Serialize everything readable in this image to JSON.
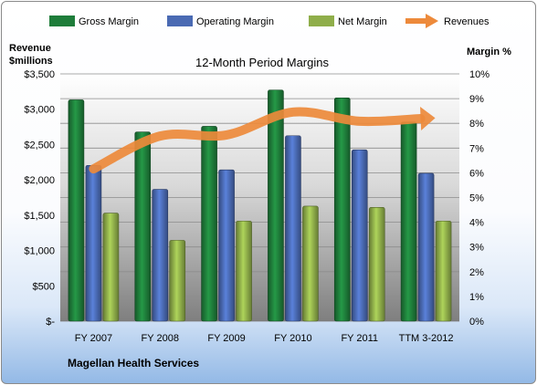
{
  "chart_data": {
    "type": "bar",
    "title": "12-Month Period Margins",
    "footer": "Magellan Health Services",
    "ylabel_left": [
      "Revenue",
      "$millions"
    ],
    "ylabel_right": "Margin %",
    "categories": [
      "FY 2007",
      "FY 2008",
      "FY 2009",
      "FY 2010",
      "FY 2011",
      "TTM 3-2012"
    ],
    "y_left": {
      "range": [
        0,
        3500
      ],
      "ticks": [
        "$-",
        "$500",
        "$1,000",
        "$1,500",
        "$2,000",
        "$2,500",
        "$3,000",
        "$3,500"
      ]
    },
    "y_right": {
      "range": [
        0,
        10
      ],
      "ticks": [
        "0%",
        "1%",
        "2%",
        "3%",
        "4%",
        "5%",
        "6%",
        "7%",
        "8%",
        "9%",
        "10%"
      ]
    },
    "legend_position": "top",
    "grid": true,
    "series": [
      {
        "name": "Gross Margin",
        "kind": "bar",
        "axis": "right",
        "unit": "%",
        "color": "#1e7d3a",
        "values": [
          8.95,
          7.65,
          7.88,
          9.35,
          9.03,
          8.05
        ]
      },
      {
        "name": "Operating Margin",
        "kind": "bar",
        "axis": "right",
        "unit": "%",
        "color": "#4a6ab3",
        "values": [
          6.3,
          5.33,
          6.12,
          7.5,
          6.93,
          5.98
        ]
      },
      {
        "name": "Net Margin",
        "kind": "bar",
        "axis": "right",
        "unit": "%",
        "color": "#8fae4a",
        "values": [
          4.37,
          3.27,
          4.05,
          4.65,
          4.6,
          4.05
        ]
      },
      {
        "name": "Revenues",
        "kind": "line-arrow",
        "axis": "left",
        "unit": "$M",
        "color": "#ed8a3b",
        "values": [
          2155,
          2620,
          2635,
          2960,
          2830,
          2870
        ]
      }
    ]
  }
}
